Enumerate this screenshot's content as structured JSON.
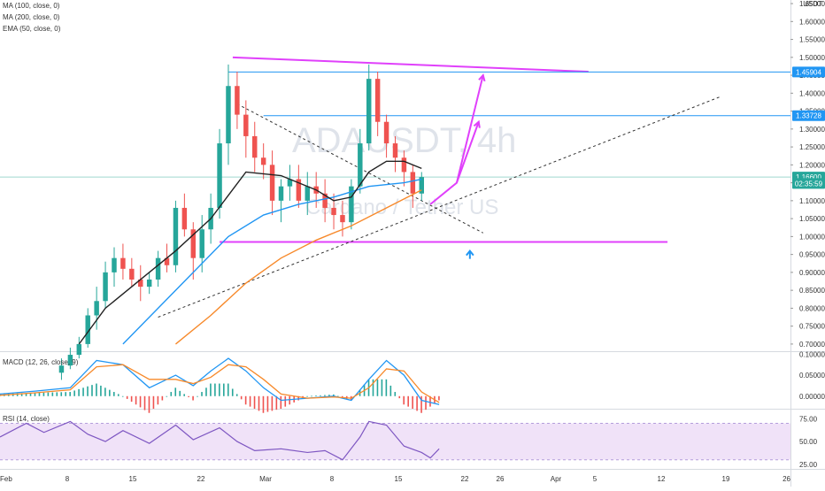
{
  "legends": {
    "ma100": "MA (100, close, 0)",
    "ma200": "MA (200, close, 0)",
    "ema50": "EMA (50, close, 0)",
    "macd": "MACD (12, 26, close, 9)",
    "rsi": "RSI (14, close)"
  },
  "watermark": {
    "symbol": "ADAUSDT, 4h",
    "name": "Cardano / Tether US"
  },
  "chart_data": {
    "type": "candlestick",
    "currency": "USDT",
    "price_axis": {
      "ticks": [
        "1.65000",
        "1.60000",
        "1.55000",
        "1.50000",
        "1.45000",
        "1.40000",
        "1.35000",
        "1.30000",
        "1.25000",
        "1.20000",
        "1.15000",
        "1.10000",
        "1.05000",
        "1.00000",
        "0.95000",
        "0.90000",
        "0.85000",
        "0.80000",
        "0.75000",
        "0.70000"
      ],
      "range": [
        0.68,
        1.66
      ]
    },
    "time_axis": {
      "labels": [
        "Feb",
        "8",
        "15",
        "22",
        "Mar",
        "8",
        "15",
        "22",
        "26",
        "Apr",
        "5",
        "12",
        "19",
        "26"
      ],
      "range_days": [
        0,
        90
      ]
    },
    "price_tags": [
      {
        "label": "1.45904",
        "value": 1.45904,
        "color": "#2196f3"
      },
      {
        "label": "1.33728",
        "value": 1.33728,
        "color": "#2196f3"
      },
      {
        "label": "1.16600",
        "value": 1.166,
        "color": "#26a69a"
      },
      {
        "label": "02:35:59",
        "value": 1.148,
        "color": "#26a69a"
      }
    ],
    "candles_ohlc": [
      [
        7,
        0.62,
        0.66,
        0.6,
        0.64
      ],
      [
        8,
        0.64,
        0.69,
        0.63,
        0.67
      ],
      [
        9,
        0.67,
        0.72,
        0.66,
        0.7
      ],
      [
        10,
        0.7,
        0.8,
        0.69,
        0.78
      ],
      [
        11,
        0.78,
        0.86,
        0.74,
        0.82
      ],
      [
        12,
        0.82,
        0.93,
        0.8,
        0.9
      ],
      [
        13,
        0.9,
        0.97,
        0.86,
        0.94
      ],
      [
        14,
        0.94,
        0.98,
        0.88,
        0.91
      ],
      [
        15,
        0.91,
        0.94,
        0.86,
        0.88
      ],
      [
        16,
        0.88,
        0.92,
        0.82,
        0.86
      ],
      [
        17,
        0.86,
        0.9,
        0.84,
        0.88
      ],
      [
        18,
        0.88,
        0.96,
        0.86,
        0.94
      ],
      [
        19,
        0.94,
        0.98,
        0.9,
        0.92
      ],
      [
        20,
        0.92,
        1.1,
        0.9,
        1.08
      ],
      [
        21,
        1.08,
        1.12,
        1.0,
        1.02
      ],
      [
        22,
        1.02,
        1.04,
        0.88,
        0.94
      ],
      [
        23,
        0.94,
        1.06,
        0.9,
        1.02
      ],
      [
        24,
        1.02,
        1.12,
        0.98,
        1.08
      ],
      [
        25,
        1.08,
        1.3,
        1.05,
        1.26
      ],
      [
        26,
        1.26,
        1.48,
        1.2,
        1.42
      ],
      [
        27,
        1.42,
        1.46,
        1.3,
        1.34
      ],
      [
        28,
        1.34,
        1.38,
        1.22,
        1.28
      ],
      [
        29,
        1.28,
        1.32,
        1.18,
        1.22
      ],
      [
        30,
        1.22,
        1.26,
        1.16,
        1.2
      ],
      [
        31,
        1.2,
        1.24,
        1.06,
        1.1
      ],
      [
        32,
        1.1,
        1.16,
        1.04,
        1.14
      ],
      [
        33,
        1.14,
        1.2,
        1.1,
        1.16
      ],
      [
        34,
        1.16,
        1.2,
        1.08,
        1.1
      ],
      [
        35,
        1.1,
        1.18,
        1.06,
        1.14
      ],
      [
        36,
        1.14,
        1.18,
        1.08,
        1.12
      ],
      [
        37,
        1.12,
        1.16,
        1.04,
        1.08
      ],
      [
        38,
        1.08,
        1.12,
        1.02,
        1.06
      ],
      [
        39,
        1.06,
        1.1,
        1.0,
        1.04
      ],
      [
        40,
        1.04,
        1.16,
        1.02,
        1.14
      ],
      [
        41,
        1.14,
        1.3,
        1.12,
        1.26
      ],
      [
        42,
        1.26,
        1.48,
        1.24,
        1.44
      ],
      [
        43,
        1.44,
        1.46,
        1.28,
        1.32
      ],
      [
        44,
        1.32,
        1.34,
        1.22,
        1.26
      ],
      [
        45,
        1.26,
        1.28,
        1.18,
        1.22
      ],
      [
        46,
        1.22,
        1.24,
        1.14,
        1.18
      ],
      [
        47,
        1.18,
        1.2,
        1.08,
        1.12
      ],
      [
        48,
        1.12,
        1.18,
        1.1,
        1.166
      ]
    ],
    "series": [
      {
        "indicator": "ma100",
        "color": "#2196f3",
        "points": [
          [
            14,
            0.7
          ],
          [
            18,
            0.8
          ],
          [
            22,
            0.9
          ],
          [
            26,
            1.0
          ],
          [
            30,
            1.06
          ],
          [
            34,
            1.09
          ],
          [
            38,
            1.11
          ],
          [
            42,
            1.14
          ],
          [
            46,
            1.15
          ],
          [
            48,
            1.16
          ]
        ]
      },
      {
        "indicator": "ma200",
        "color": "#f7892a",
        "points": [
          [
            20,
            0.7
          ],
          [
            24,
            0.78
          ],
          [
            28,
            0.87
          ],
          [
            32,
            0.94
          ],
          [
            36,
            0.99
          ],
          [
            40,
            1.03
          ],
          [
            44,
            1.08
          ],
          [
            48,
            1.13
          ]
        ]
      },
      {
        "indicator": "ema50",
        "color": "#222222",
        "points": [
          [
            9,
            0.7
          ],
          [
            12,
            0.8
          ],
          [
            16,
            0.88
          ],
          [
            20,
            0.96
          ],
          [
            24,
            1.05
          ],
          [
            28,
            1.18
          ],
          [
            32,
            1.17
          ],
          [
            36,
            1.13
          ],
          [
            38,
            1.1
          ],
          [
            40,
            1.11
          ],
          [
            42,
            1.18
          ],
          [
            44,
            1.21
          ],
          [
            46,
            1.21
          ],
          [
            48,
            1.19
          ]
        ]
      }
    ],
    "drawings": [
      {
        "kind": "trend",
        "color": "#e040fb",
        "from": [
          26.5,
          1.5
        ],
        "to": [
          67,
          1.46
        ]
      },
      {
        "kind": "hline",
        "color": "#2196f3",
        "from": [
          26,
          1.45904
        ],
        "to": [
          90,
          1.45904
        ]
      },
      {
        "kind": "hline",
        "color": "#2196f3",
        "from": [
          30,
          1.33728
        ],
        "to": [
          90,
          1.33728
        ]
      },
      {
        "kind": "hline",
        "color": "#9fd6cf",
        "from": [
          0,
          1.166
        ],
        "to": [
          90,
          1.166
        ]
      },
      {
        "kind": "hline",
        "color": "#e040fb",
        "from": [
          25,
          0.985
        ],
        "to": [
          76,
          0.985
        ]
      },
      {
        "kind": "dashed",
        "color": "#333333",
        "from": [
          18,
          0.775
        ],
        "to": [
          82,
          1.39
        ]
      },
      {
        "kind": "dashed",
        "color": "#333333",
        "from": [
          27,
          1.37
        ],
        "to": [
          55,
          1.01
        ]
      },
      {
        "kind": "path",
        "color": "#e040fb",
        "points": [
          [
            49,
            1.09
          ],
          [
            52,
            1.15
          ],
          [
            54.5,
            1.32
          ]
        ]
      },
      {
        "kind": "path",
        "color": "#e040fb",
        "points": [
          [
            52,
            1.15
          ],
          [
            55,
            1.45
          ]
        ]
      },
      {
        "kind": "marker",
        "color": "#2196f3",
        "at": [
          53.5,
          0.95
        ]
      }
    ],
    "macd": {
      "ticks": [
        "0.10000",
        "0.05000",
        "0.00000"
      ],
      "range": [
        -0.03,
        0.105
      ],
      "macd_line": [
        [
          0,
          0.005
        ],
        [
          4,
          0.012
        ],
        [
          8,
          0.02
        ],
        [
          11,
          0.085
        ],
        [
          14,
          0.075
        ],
        [
          17,
          0.02
        ],
        [
          20,
          0.05
        ],
        [
          22,
          0.025
        ],
        [
          24,
          0.06
        ],
        [
          26,
          0.09
        ],
        [
          28,
          0.06
        ],
        [
          30,
          0.02
        ],
        [
          32,
          -0.01
        ],
        [
          35,
          -0.005
        ],
        [
          38,
          0.0
        ],
        [
          40,
          -0.01
        ],
        [
          42,
          0.04
        ],
        [
          44,
          0.085
        ],
        [
          46,
          0.05
        ],
        [
          48,
          -0.01
        ],
        [
          50,
          -0.02
        ]
      ],
      "signal_line": [
        [
          0,
          0.002
        ],
        [
          4,
          0.008
        ],
        [
          8,
          0.015
        ],
        [
          11,
          0.07
        ],
        [
          14,
          0.075
        ],
        [
          17,
          0.04
        ],
        [
          20,
          0.04
        ],
        [
          22,
          0.03
        ],
        [
          24,
          0.045
        ],
        [
          26,
          0.075
        ],
        [
          28,
          0.07
        ],
        [
          30,
          0.04
        ],
        [
          32,
          0.005
        ],
        [
          35,
          -0.005
        ],
        [
          38,
          -0.002
        ],
        [
          40,
          -0.005
        ],
        [
          42,
          0.02
        ],
        [
          44,
          0.065
        ],
        [
          46,
          0.06
        ],
        [
          48,
          0.01
        ],
        [
          50,
          -0.015
        ]
      ],
      "line_colors": [
        "#2196f3",
        "#f7892a"
      ]
    },
    "rsi": {
      "ticks": [
        "75.00",
        "50.00",
        "25.00"
      ],
      "range": [
        20,
        85
      ],
      "band": [
        30,
        70
      ],
      "values": [
        [
          0,
          55
        ],
        [
          3,
          70
        ],
        [
          5,
          60
        ],
        [
          8,
          72
        ],
        [
          10,
          58
        ],
        [
          12,
          50
        ],
        [
          14,
          62
        ],
        [
          17,
          48
        ],
        [
          20,
          68
        ],
        [
          22,
          52
        ],
        [
          25,
          65
        ],
        [
          27,
          50
        ],
        [
          29,
          40
        ],
        [
          32,
          42
        ],
        [
          35,
          38
        ],
        [
          37,
          40
        ],
        [
          39,
          30
        ],
        [
          41,
          55
        ],
        [
          42,
          72
        ],
        [
          44,
          68
        ],
        [
          46,
          45
        ],
        [
          48,
          38
        ],
        [
          49,
          32
        ],
        [
          50,
          42
        ]
      ],
      "color": "#7e57c2"
    }
  }
}
